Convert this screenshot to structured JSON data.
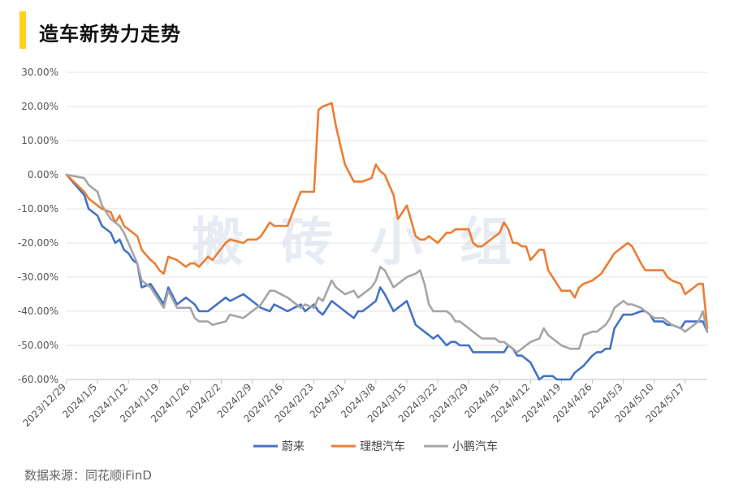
{
  "header": {
    "title": "造车新势力走势"
  },
  "footer": {
    "source": "数据来源：同花顺iFinD"
  },
  "watermark": "搬砖小组",
  "chart_data": {
    "type": "line",
    "ylim": [
      -60,
      30
    ],
    "yticks": [
      "30.00%",
      "20.00%",
      "10.00%",
      "0.00%",
      "-10.00%",
      "-20.00%",
      "-30.00%",
      "-40.00%",
      "-50.00%",
      "-60.00%"
    ],
    "xticks": [
      "2023/12/29",
      "2024/1/5",
      "2024/1/12",
      "2024/1/19",
      "2024/1/26",
      "2024/2/2",
      "2024/2/9",
      "2024/2/16",
      "2024/2/23",
      "2024/3/1",
      "2024/3/8",
      "2024/3/15",
      "2024/3/22",
      "2024/3/29",
      "2024/4/5",
      "2024/4/12",
      "2024/4/19",
      "2024/4/26",
      "2024/5/3",
      "2024/5/10",
      "2024/5/17"
    ],
    "x_range_days": [
      0,
      145
    ],
    "grid": true,
    "legend": "bottom",
    "series": [
      {
        "name": "蔚来",
        "color": "#4472C4",
        "x": [
          0,
          4,
          5,
          7,
          8,
          10,
          11,
          12,
          13,
          14,
          15,
          16,
          17,
          19,
          20,
          21,
          22,
          23,
          25,
          27,
          28,
          29,
          30,
          32,
          33,
          36,
          37,
          40,
          41,
          42,
          43,
          44,
          46,
          47,
          50,
          53,
          54,
          56,
          57,
          58,
          60,
          61,
          63,
          65,
          66,
          67,
          69,
          70,
          71,
          72,
          74,
          75,
          77,
          79,
          80,
          81,
          82,
          83,
          84,
          86,
          87,
          88,
          89,
          91,
          92,
          93,
          94,
          95,
          97,
          98,
          99,
          100,
          101,
          102,
          103,
          104,
          105,
          107,
          108,
          109,
          110,
          111,
          112,
          114,
          115,
          116,
          117,
          119,
          120,
          121,
          122,
          123,
          124,
          126,
          127,
          128,
          130,
          131,
          132,
          133,
          135,
          136,
          137,
          139,
          140,
          141,
          142,
          143,
          144,
          145
        ],
        "y": [
          0,
          -6,
          -10,
          -12,
          -15,
          -17,
          -20,
          -19,
          -22,
          -23,
          -25,
          -26,
          -33,
          -32,
          -34,
          -36,
          -38,
          -33,
          -38,
          -36,
          -37,
          -38,
          -40,
          -40,
          -39,
          -36,
          -37,
          -35,
          -36,
          -37,
          -38,
          -39,
          -40,
          -38,
          -40,
          -38,
          -40,
          -38,
          -40,
          -41,
          -37,
          -38,
          -40,
          -42,
          -40,
          -40,
          -38,
          -37,
          -33,
          -35,
          -40,
          -39,
          -37,
          -44,
          -45,
          -46,
          -47,
          -48,
          -47,
          -50,
          -49,
          -49,
          -50,
          -50,
          -52,
          -52,
          -52,
          -52,
          -52,
          -52,
          -52,
          -50,
          -51,
          -53,
          -53,
          -54,
          -55,
          -60,
          -59,
          -59,
          -59,
          -60,
          -60,
          -60,
          -58,
          -57,
          -56,
          -53,
          -52,
          -52,
          -51,
          -51,
          -45,
          -41,
          -41,
          -41,
          -40,
          -40,
          -41,
          -43,
          -43,
          -44,
          -44,
          -45,
          -43,
          -43,
          -43,
          -43,
          -43,
          -46
        ]
      },
      {
        "name": "理想汽车",
        "color": "#ED7D31",
        "x": [
          0,
          4,
          5,
          7,
          8,
          10,
          11,
          12,
          13,
          14,
          15,
          16,
          17,
          19,
          20,
          21,
          22,
          23,
          25,
          27,
          28,
          29,
          30,
          32,
          33,
          36,
          37,
          40,
          41,
          42,
          43,
          44,
          46,
          47,
          50,
          53,
          54,
          56,
          57,
          58,
          60,
          61,
          63,
          65,
          66,
          67,
          69,
          70,
          71,
          72,
          74,
          75,
          77,
          79,
          80,
          81,
          82,
          83,
          84,
          86,
          87,
          88,
          89,
          91,
          92,
          93,
          94,
          95,
          97,
          98,
          99,
          100,
          101,
          102,
          103,
          104,
          105,
          107,
          108,
          109,
          110,
          111,
          112,
          114,
          115,
          116,
          117,
          119,
          120,
          121,
          122,
          123,
          124,
          126,
          127,
          128,
          130,
          131,
          132,
          133,
          135,
          136,
          137,
          139,
          140,
          141,
          142,
          143,
          144,
          145
        ],
        "y": [
          0,
          -5,
          -7,
          -9,
          -10,
          -11,
          -14,
          -12,
          -15,
          -16,
          -17,
          -18,
          -22,
          -25,
          -26,
          -28,
          -29,
          -24,
          -25,
          -27,
          -26,
          -26,
          -27,
          -24,
          -25,
          -20,
          -19,
          -20,
          -19,
          -19,
          -19,
          -18,
          -14,
          -15,
          -15,
          -5,
          -5,
          -5,
          19,
          20,
          21,
          14,
          3,
          -2,
          -2,
          -2,
          -1,
          3,
          1,
          0,
          -6,
          -13,
          -9,
          -18,
          -19,
          -19,
          -18,
          -19,
          -20,
          -17,
          -17,
          -16,
          -16,
          -16,
          -20,
          -21,
          -21,
          -20,
          -18,
          -17,
          -14,
          -16,
          -20,
          -20,
          -21,
          -21,
          -25,
          -22,
          -22,
          -28,
          -30,
          -32,
          -34,
          -34,
          -36,
          -33,
          -32,
          -31,
          -30,
          -29,
          -27,
          -25,
          -23,
          -21,
          -20,
          -21,
          -26,
          -28,
          -28,
          -28,
          -28,
          -30,
          -31,
          -32,
          -35,
          -34,
          -33,
          -32,
          -32,
          -45
        ]
      },
      {
        "name": "小鹏汽车",
        "color": "#A5A5A5",
        "x": [
          0,
          4,
          5,
          7,
          8,
          10,
          11,
          12,
          13,
          14,
          15,
          16,
          17,
          19,
          20,
          21,
          22,
          23,
          25,
          27,
          28,
          29,
          30,
          32,
          33,
          36,
          37,
          40,
          41,
          42,
          43,
          44,
          46,
          47,
          50,
          53,
          54,
          56,
          57,
          58,
          60,
          61,
          63,
          65,
          66,
          67,
          69,
          70,
          71,
          72,
          74,
          75,
          77,
          79,
          80,
          81,
          82,
          83,
          84,
          86,
          87,
          88,
          89,
          91,
          92,
          93,
          94,
          95,
          97,
          98,
          99,
          100,
          101,
          102,
          103,
          104,
          105,
          107,
          108,
          109,
          110,
          111,
          112,
          114,
          115,
          116,
          117,
          119,
          120,
          121,
          122,
          123,
          124,
          126,
          127,
          128,
          130,
          131,
          132,
          133,
          135,
          136,
          137,
          139,
          140,
          141,
          142,
          143,
          144,
          145
        ],
        "y": [
          0,
          -1,
          -3,
          -5,
          -9,
          -13,
          -14,
          -15,
          -17,
          -20,
          -23,
          -26,
          -31,
          -33,
          -35,
          -37,
          -39,
          -34,
          -39,
          -39,
          -39,
          -42,
          -43,
          -43,
          -44,
          -43,
          -41,
          -42,
          -41,
          -40,
          -39,
          -38,
          -34,
          -34,
          -36,
          -39,
          -38,
          -39,
          -36,
          -37,
          -31,
          -33,
          -35,
          -34,
          -36,
          -35,
          -33,
          -31,
          -27,
          -28,
          -33,
          -32,
          -30,
          -29,
          -28,
          -32,
          -38,
          -40,
          -40,
          -40,
          -41,
          -43,
          -43,
          -45,
          -46,
          -47,
          -48,
          -48,
          -48,
          -49,
          -49,
          -50,
          -51,
          -52,
          -51,
          -50,
          -49,
          -48,
          -45,
          -47,
          -48,
          -49,
          -50,
          -51,
          -51,
          -51,
          -47,
          -46,
          -46,
          -45,
          -44,
          -42,
          -39,
          -37,
          -38,
          -38,
          -39,
          -40,
          -41,
          -42,
          -42,
          -43,
          -44,
          -45,
          -46,
          -45,
          -44,
          -43,
          -40,
          -46
        ]
      }
    ]
  }
}
